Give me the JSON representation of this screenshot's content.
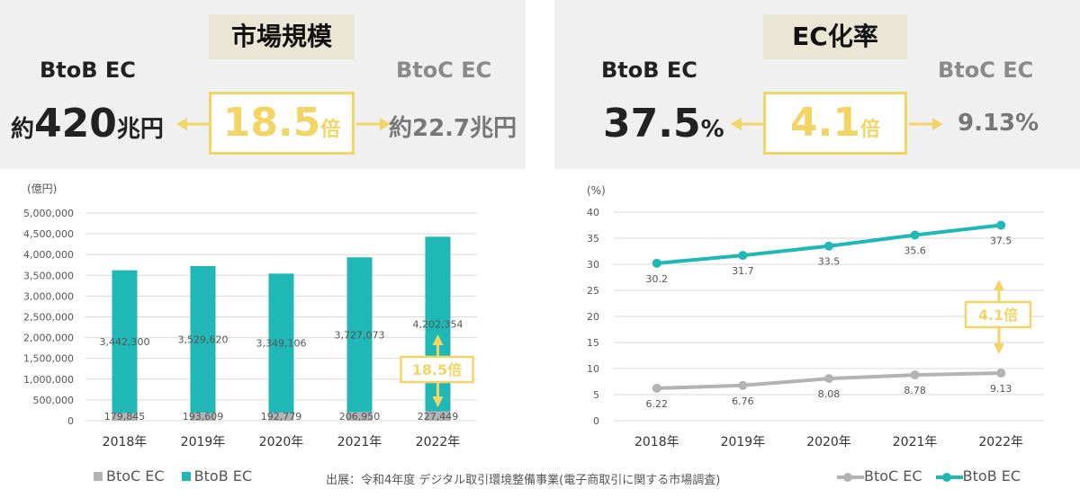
{
  "left_panel": {
    "tag": "市場規模",
    "label_left": "BtoB EC",
    "label_right": "BtoC EC",
    "value_left_prefix": "約",
    "value_left_num": "420",
    "value_left_unit": "兆円",
    "ratio_num": "18.5",
    "ratio_unit": "倍",
    "value_right": "約22.7兆円"
  },
  "right_panel": {
    "tag": "EC化率",
    "label_left": "BtoB EC",
    "label_right": "BtoC EC",
    "value_left_num": "37.5",
    "value_left_unit": "%",
    "ratio_num": "4.1",
    "ratio_unit": "倍",
    "value_right": "9.13%"
  },
  "colors": {
    "btob": "#20b8b6",
    "btoc": "#b3b3b3",
    "accent": "#f3d565",
    "panel_bg": "#f0f0f0"
  },
  "chart_data": [
    {
      "type": "bar",
      "unit_label": "(億円)",
      "categories": [
        "2018年",
        "2019年",
        "2020年",
        "2021年",
        "2022年"
      ],
      "series": [
        {
          "name": "BtoC EC",
          "values": [
            179845,
            193609,
            192779,
            206950,
            227449
          ],
          "labels": [
            "179,845",
            "193,609",
            "192,779",
            "206,950",
            "227,449"
          ]
        },
        {
          "name": "BtoB EC",
          "values": [
            3442300,
            3529620,
            3349106,
            3727073,
            4202354
          ],
          "labels": [
            "3,442,300",
            "3,529,620",
            "3,349,106",
            "3,727,073",
            "4,202,354"
          ]
        }
      ],
      "stacked": true,
      "ylim": [
        0,
        5000000
      ],
      "yticks": [
        0,
        500000,
        1000000,
        1500000,
        2000000,
        2500000,
        3000000,
        3500000,
        4000000,
        4500000,
        5000000
      ],
      "ytick_labels": [
        "0",
        "500,000",
        "1,000,000",
        "1,500,000",
        "2,000,000",
        "2,500,000",
        "3,000,000",
        "3,500,000",
        "4,000,000",
        "4,500,000",
        "5,000,000"
      ],
      "grid": true,
      "annotation": "18.5倍",
      "legend_position": "bottom-left"
    },
    {
      "type": "line",
      "unit_label": "(%)",
      "categories": [
        "2018年",
        "2019年",
        "2020年",
        "2021年",
        "2022年"
      ],
      "series": [
        {
          "name": "BtoC EC",
          "values": [
            6.22,
            6.76,
            8.08,
            8.78,
            9.13
          ],
          "labels": [
            "6.22",
            "6.76",
            "8.08",
            "8.78",
            "9.13"
          ]
        },
        {
          "name": "BtoB EC",
          "values": [
            30.2,
            31.7,
            33.5,
            35.6,
            37.5
          ],
          "labels": [
            "30.2",
            "31.7",
            "33.5",
            "35.6",
            "37.5"
          ]
        }
      ],
      "ylim": [
        0,
        40
      ],
      "yticks": [
        0,
        5,
        10,
        15,
        20,
        25,
        30,
        35,
        40
      ],
      "ytick_labels": [
        "0",
        "5",
        "10",
        "15",
        "20",
        "25",
        "30",
        "35",
        "40"
      ],
      "grid": true,
      "annotation": "4.1倍",
      "legend_position": "bottom-right"
    }
  ],
  "source": "出展：令和4年度 デジタル取引環境整備事業(電子商取引に関する市場調査)"
}
